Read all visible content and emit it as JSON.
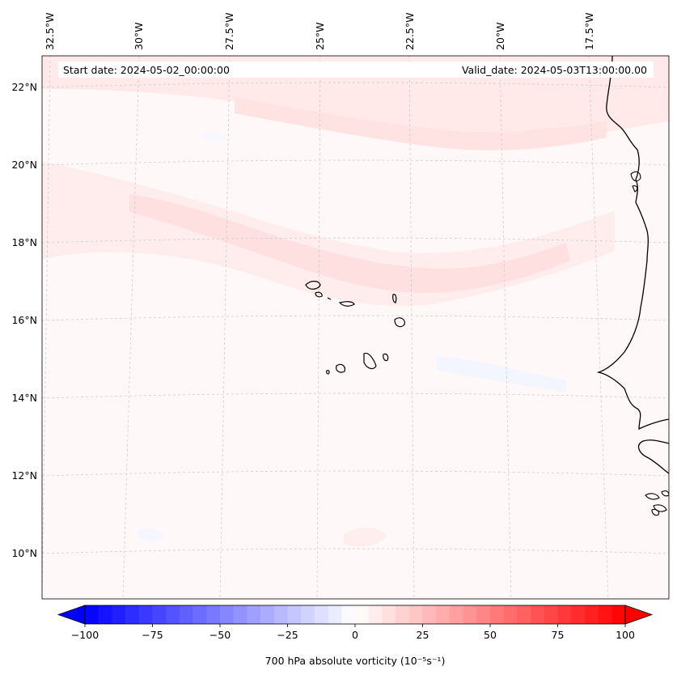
{
  "info": {
    "start_date": "Start date: 2024-05-02_00:00:00",
    "valid_date": "Valid_date: 2024-05-03T13:00:00.00"
  },
  "longitude_labels": [
    "32.5°W",
    "30°W",
    "27.5°W",
    "25°W",
    "22.5°W",
    "20°W",
    "17.5°W"
  ],
  "latitude_labels": [
    "22°N",
    "20°N",
    "18°N",
    "16°N",
    "14°N",
    "12°N",
    "10°N"
  ],
  "colorbar": {
    "label": "700 hPa absolute vorticity (10⁻⁵s⁻¹)",
    "ticks": [
      "−100",
      "−75",
      "−50",
      "−25",
      "0",
      "25",
      "50",
      "75",
      "100"
    ],
    "tick_values": [
      -100,
      -75,
      -50,
      -25,
      0,
      25,
      50,
      75,
      100
    ],
    "range": [
      -100,
      100
    ],
    "step": 5,
    "cmap": "bwr",
    "extend": "both"
  },
  "colors": {
    "low": "#0000ff",
    "mid": "#ffffff",
    "high": "#ff0000",
    "coastline": "#000000",
    "gridline": "#c8c8c8"
  }
}
